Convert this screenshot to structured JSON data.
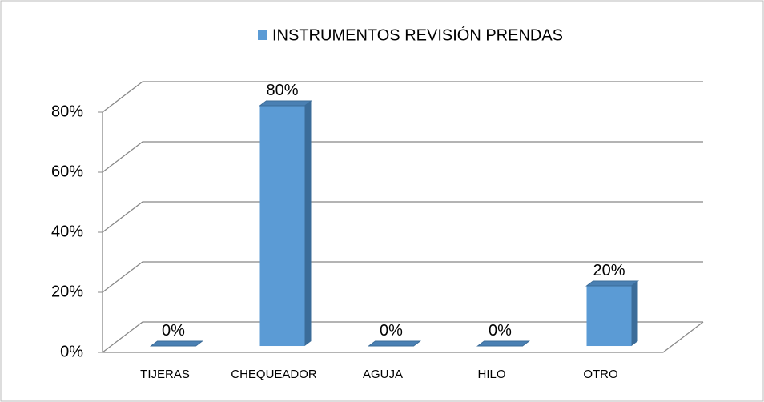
{
  "chart_data": {
    "type": "bar3d",
    "categories": [
      "TIJERAS",
      "CHEQUEADOR",
      "AGUJA",
      "HILO",
      "OTRO"
    ],
    "series": [
      {
        "name": "INSTRUMENTOS REVISIÓN PRENDAS",
        "color": "#5b9bd5",
        "values": [
          0,
          80,
          0,
          0,
          20
        ],
        "value_labels": [
          "0%",
          "80%",
          "0%",
          "0%",
          "20%"
        ]
      }
    ],
    "ylim": [
      0,
      80
    ],
    "yticks": [
      {
        "value": 0,
        "label": "0%"
      },
      {
        "value": 20,
        "label": "20%"
      },
      {
        "value": 40,
        "label": "40%"
      },
      {
        "value": 60,
        "label": "60%"
      },
      {
        "value": 80,
        "label": "80%"
      }
    ],
    "grid": true,
    "legend": "top"
  }
}
